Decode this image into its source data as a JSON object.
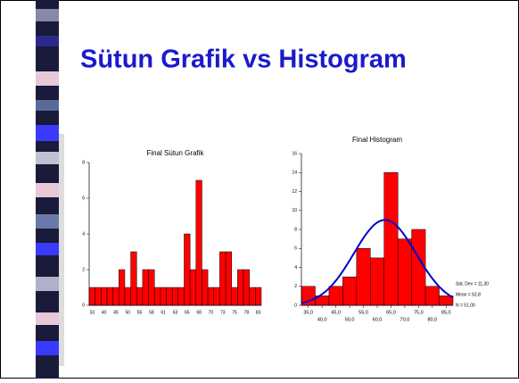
{
  "slide": {
    "title": "Sütun Grafik vs Histogram"
  },
  "chart_data": [
    {
      "type": "bar",
      "title": "Final Sütun Grafik",
      "categories": [
        "33",
        null,
        "40",
        null,
        "45",
        null,
        "50",
        null,
        "55",
        null,
        "58",
        null,
        "61",
        null,
        "63",
        null,
        "65",
        null,
        "68",
        null,
        "70",
        null,
        "73",
        null,
        "75",
        null,
        "78",
        null,
        "83"
      ],
      "values": [
        1,
        1,
        1,
        1,
        1,
        2,
        1,
        3,
        1,
        2,
        2,
        1,
        1,
        1,
        1,
        1,
        4,
        2,
        7,
        2,
        1,
        1,
        3,
        3,
        1,
        2,
        2,
        1,
        1
      ],
      "color": "#ff0000",
      "ylim": [
        0,
        8
      ],
      "yticks": [
        0,
        2,
        4,
        6,
        8
      ]
    },
    {
      "type": "histogram",
      "title": "Final Histogram",
      "bins": [
        32.5,
        37.5,
        42.5,
        47.5,
        52.5,
        57.5,
        62.5,
        67.5,
        72.5,
        77.5,
        82.5,
        87.5
      ],
      "values": [
        2,
        1,
        2,
        3,
        6,
        5,
        14,
        7,
        8,
        2,
        1
      ],
      "color": "#ff0000",
      "line_color": "#0000cc",
      "xlim": [
        32.5,
        87.5
      ],
      "ylim": [
        0,
        16
      ],
      "yticks": [
        0,
        2,
        4,
        6,
        8,
        10,
        12,
        14,
        16
      ],
      "xticks": [
        {
          "value": 35,
          "label": "35,0"
        },
        {
          "value": 40,
          "label": "40,0"
        },
        {
          "value": 45,
          "label": "45,0"
        },
        {
          "value": 50,
          "label": "50,0"
        },
        {
          "value": 55,
          "label": "55,0"
        },
        {
          "value": 60,
          "label": "60,0"
        },
        {
          "value": 65,
          "label": "65,0"
        },
        {
          "value": 70,
          "label": "70,0"
        },
        {
          "value": 75,
          "label": "75,0"
        },
        {
          "value": 80,
          "label": "80,0"
        },
        {
          "value": 85,
          "label": "85,0"
        }
      ],
      "stats": [
        {
          "value": 11.3,
          "label": "Std. Dev = 11,30"
        },
        {
          "value": 62.8,
          "label": "Mean = 62,8"
        },
        {
          "value": 51,
          "label": "N = 51,00"
        }
      ]
    }
  ]
}
